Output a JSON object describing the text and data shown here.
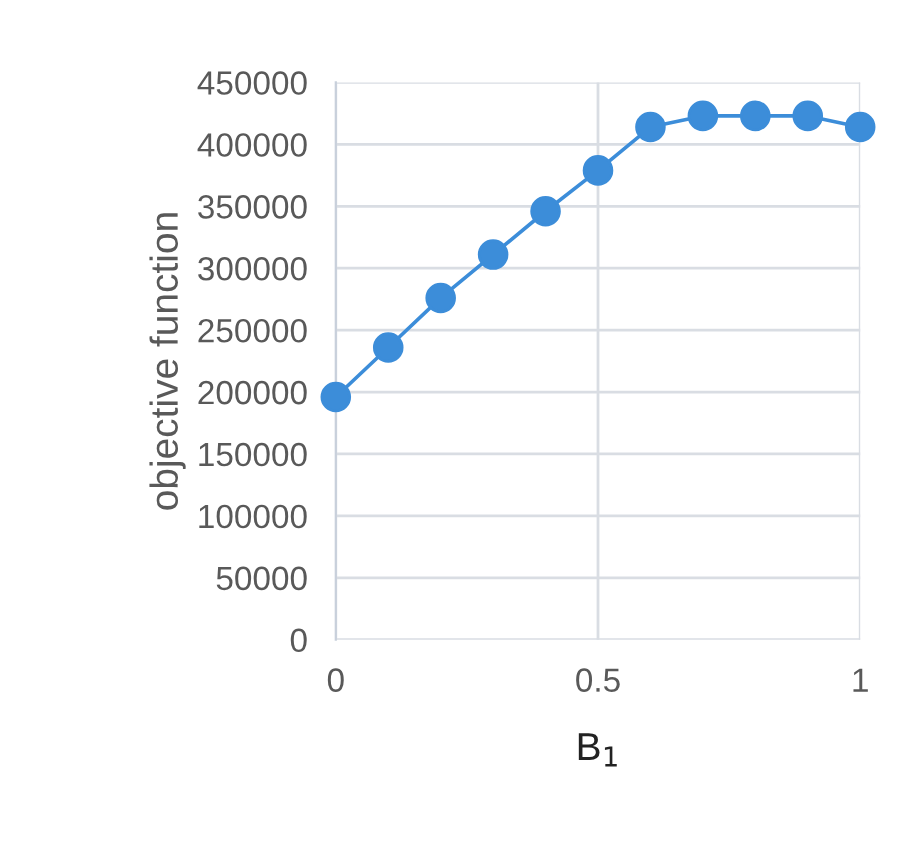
{
  "chart_data": {
    "type": "line",
    "xlabel": "B$_{1}$",
    "ylabel": "objective function",
    "x": [
      0,
      0.1,
      0.2,
      0.3,
      0.4,
      0.5,
      0.6,
      0.7,
      0.8,
      0.9,
      1
    ],
    "series": [
      {
        "color": "#3c8dd9",
        "values": [
          196000,
          236000,
          276000,
          311000,
          346000,
          379000,
          414000,
          423000,
          423000,
          423000,
          414000
        ]
      }
    ],
    "xlim": [
      0,
      1
    ],
    "xticks": [
      0,
      0.5,
      1
    ],
    "ylim": [
      0,
      450000
    ],
    "yticks": [
      0,
      50000,
      100000,
      150000,
      200000,
      250000,
      300000,
      350000,
      400000,
      450000
    ],
    "grid": true,
    "marker": "circle",
    "line_style": "solid",
    "legend": false
  }
}
